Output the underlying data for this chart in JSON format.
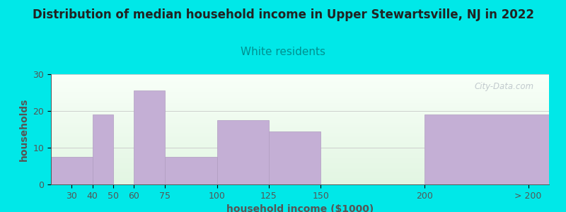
{
  "title": "Distribution of median household income in Upper Stewartsville, NJ in 2022",
  "subtitle": "White residents",
  "xlabel": "household income ($1000)",
  "ylabel": "households",
  "tick_labels": [
    "30",
    "40",
    "50",
    "60",
    "75",
    "100",
    "125",
    "150",
    "200",
    "> 200"
  ],
  "tick_positions": [
    30,
    40,
    50,
    60,
    75,
    100,
    125,
    150,
    200,
    250
  ],
  "bar_lefts": [
    20,
    40,
    60,
    75,
    100,
    125,
    200
  ],
  "bar_rights": [
    40,
    50,
    75,
    100,
    125,
    150,
    260
  ],
  "bar_heights": [
    7.5,
    19,
    25.5,
    7.5,
    17.5,
    14.5,
    19
  ],
  "bar_color": "#c4afd5",
  "bar_edgecolor": "#b09cc0",
  "background_color": "#00e8e8",
  "plot_bg_top": "#f8fff8",
  "plot_bg_bottom": "#e2f5e2",
  "title_color": "#222222",
  "subtitle_color": "#009090",
  "axis_color": "#555555",
  "tick_color": "#555555",
  "yticks": [
    0,
    10,
    20,
    30
  ],
  "ylim": [
    0,
    30
  ],
  "xlim": [
    20,
    260
  ],
  "grid_color": "#c8c8c8",
  "watermark": "City-Data.com",
  "title_fontsize": 12,
  "subtitle_fontsize": 11,
  "label_fontsize": 9,
  "tick_fontsize": 9
}
